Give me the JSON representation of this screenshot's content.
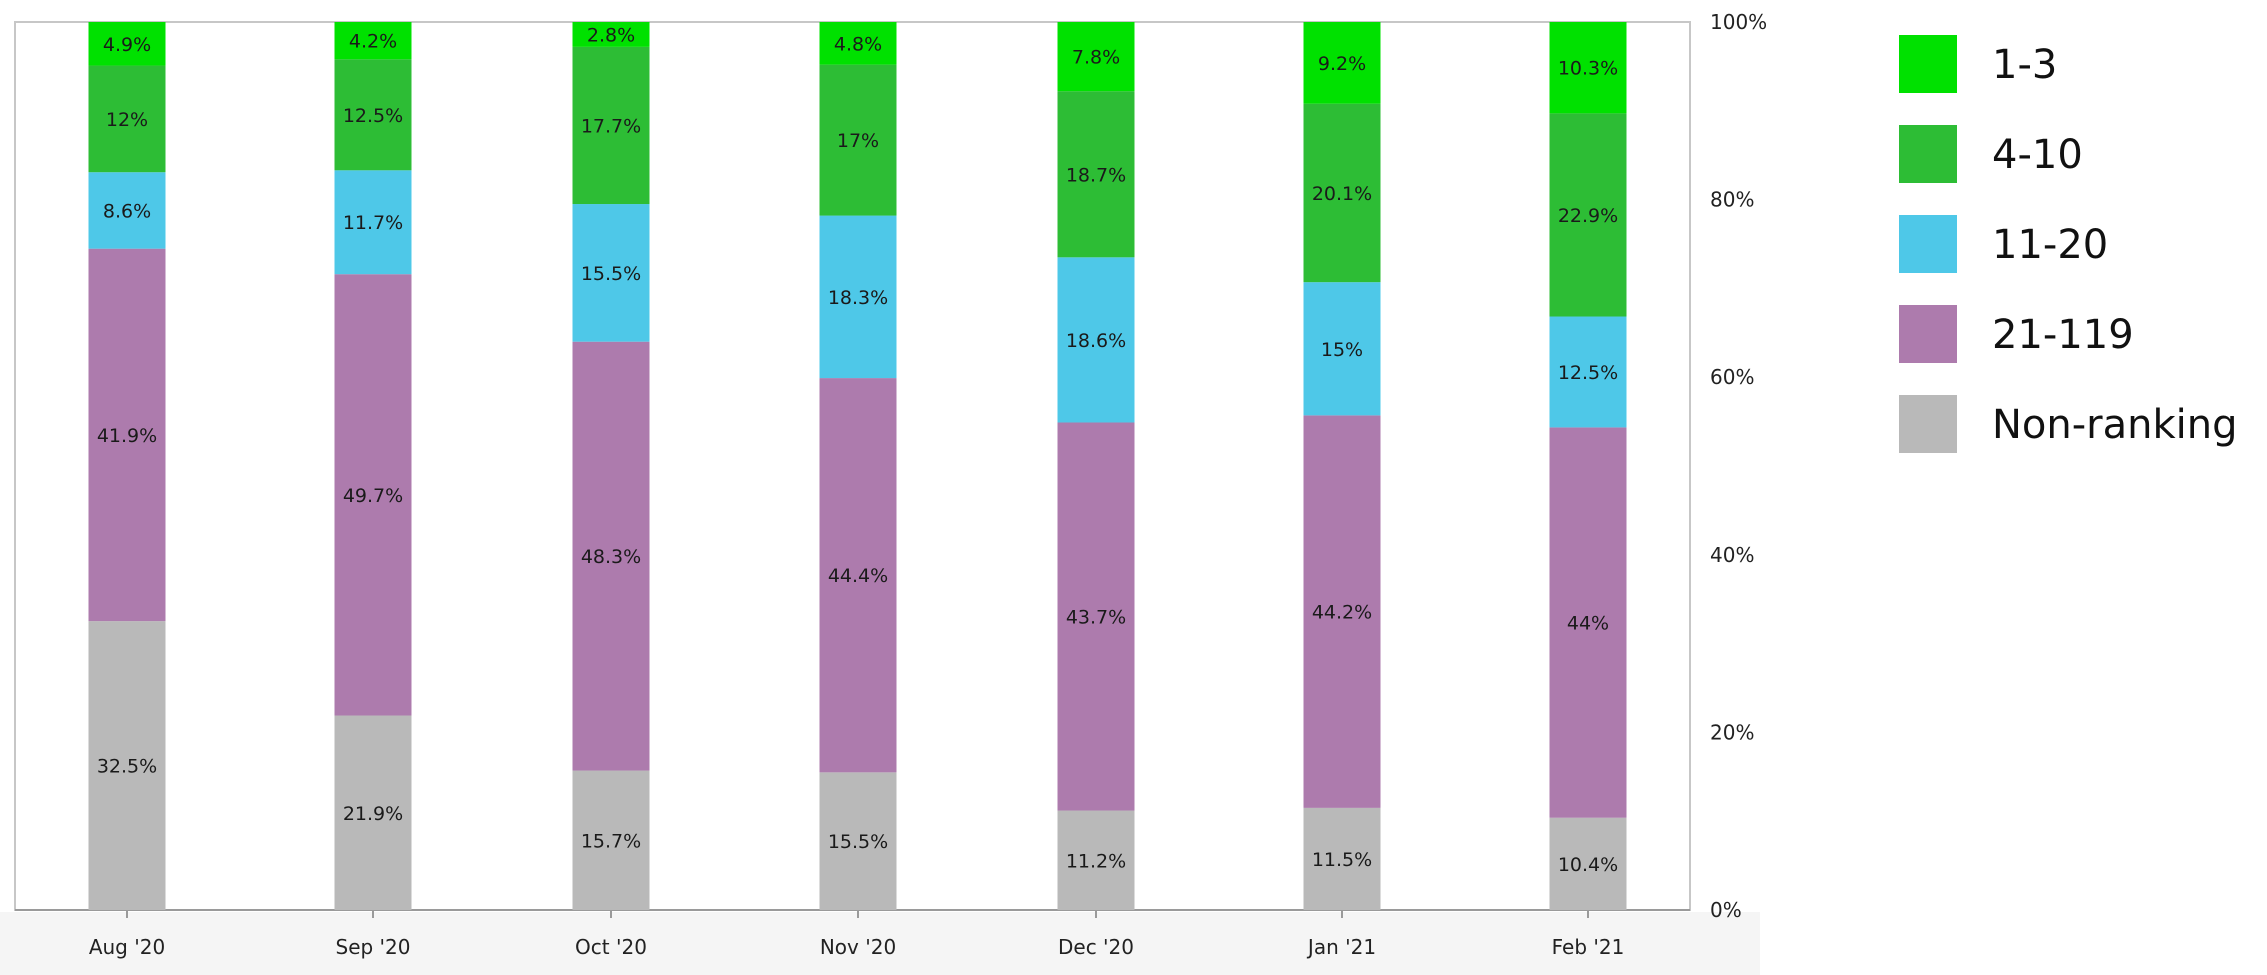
{
  "chart_data": {
    "type": "bar",
    "stacked": true,
    "normalized": true,
    "categories": [
      "Aug '20",
      "Sep '20",
      "Oct '20",
      "Nov '20",
      "Dec '20",
      "Jan '21",
      "Feb '21"
    ],
    "series": [
      {
        "name": "Non-ranking",
        "color": "#b9b9b9",
        "values": [
          32.5,
          21.9,
          15.7,
          15.5,
          11.2,
          11.5,
          10.4
        ]
      },
      {
        "name": "21-119",
        "color": "#ad7bad",
        "values": [
          41.9,
          49.7,
          48.3,
          44.4,
          43.7,
          44.2,
          44
        ]
      },
      {
        "name": "11-20",
        "color": "#4ec8e8",
        "values": [
          8.6,
          11.7,
          15.5,
          18.3,
          18.6,
          15,
          12.5
        ]
      },
      {
        "name": "4-10",
        "color": "#2dbd35",
        "values": [
          12,
          12.5,
          17.7,
          17,
          18.7,
          20.1,
          22.9
        ]
      },
      {
        "name": "1-3",
        "color": "#00e100",
        "values": [
          4.9,
          4.2,
          2.8,
          4.8,
          7.8,
          9.2,
          10.3
        ]
      }
    ],
    "data_labels": [
      [
        "32.5%",
        "21.9%",
        "15.7%",
        "15.5%",
        "11.2%",
        "11.5%",
        "10.4%"
      ],
      [
        "41.9%",
        "49.7%",
        "48.3%",
        "44.4%",
        "43.7%",
        "44.2%",
        "44%"
      ],
      [
        "8.6%",
        "11.7%",
        "15.5%",
        "18.3%",
        "18.6%",
        "15%",
        "12.5%"
      ],
      [
        "12%",
        "12.5%",
        "17.7%",
        "17%",
        "18.7%",
        "20.1%",
        "22.9%"
      ],
      [
        "4.9%",
        "4.2%",
        "2.8%",
        "4.8%",
        "7.8%",
        "9.2%",
        "10.3%"
      ]
    ],
    "y_axis": {
      "position": "right",
      "ticks": [
        "0%",
        "20%",
        "40%",
        "60%",
        "80%",
        "100%"
      ],
      "ylim": [
        0,
        100
      ]
    },
    "legend": {
      "placement": "right",
      "entries": [
        {
          "label": "1-3",
          "color": "#00e100"
        },
        {
          "label": "4-10",
          "color": "#2dbd35"
        },
        {
          "label": "11-20",
          "color": "#4ec8e8"
        },
        {
          "label": "21-119",
          "color": "#ad7bad"
        },
        {
          "label": "Non-ranking",
          "color": "#b9b9b9"
        }
      ]
    },
    "grid": false,
    "title": "",
    "xlabel": "",
    "ylabel": ""
  }
}
